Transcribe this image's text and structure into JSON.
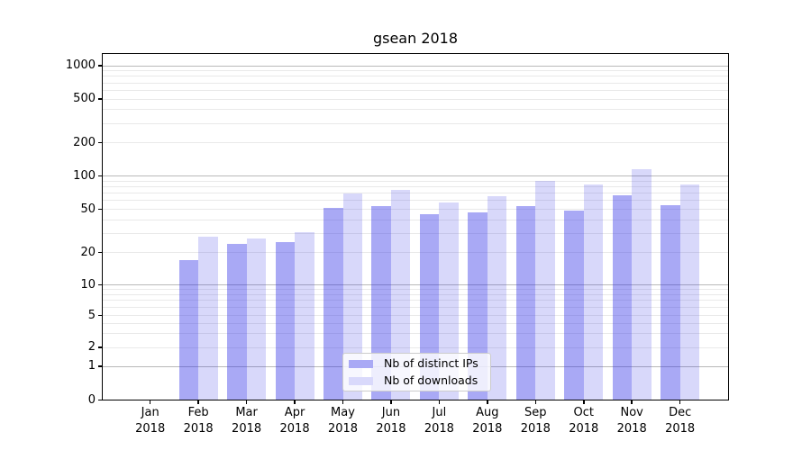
{
  "title": "gsean 2018",
  "chart_data": {
    "type": "bar",
    "title": "gsean 2018",
    "xlabel": "",
    "ylabel": "",
    "yscale": "symlog",
    "ylim": [
      0,
      1300
    ],
    "grid": true,
    "yticks": [
      0,
      1,
      2,
      5,
      10,
      20,
      50,
      100,
      200,
      500,
      1000
    ],
    "categories": [
      "Jan 2018",
      "Feb 2018",
      "Mar 2018",
      "Apr 2018",
      "May 2018",
      "Jun 2018",
      "Jul 2018",
      "Aug 2018",
      "Sep 2018",
      "Oct 2018",
      "Nov 2018",
      "Dec 2018"
    ],
    "series": [
      {
        "name": "Nb of distinct IPs",
        "color": "#a9a9f5",
        "values": [
          0,
          17,
          24,
          25,
          51,
          53,
          45,
          47,
          53,
          49,
          67,
          54
        ]
      },
      {
        "name": "Nb of downloads",
        "color": "#d9d9fb",
        "values": [
          0,
          28,
          27,
          31,
          70,
          75,
          58,
          65,
          90,
          83,
          115,
          84
        ]
      }
    ],
    "legend_position": "lower center"
  }
}
